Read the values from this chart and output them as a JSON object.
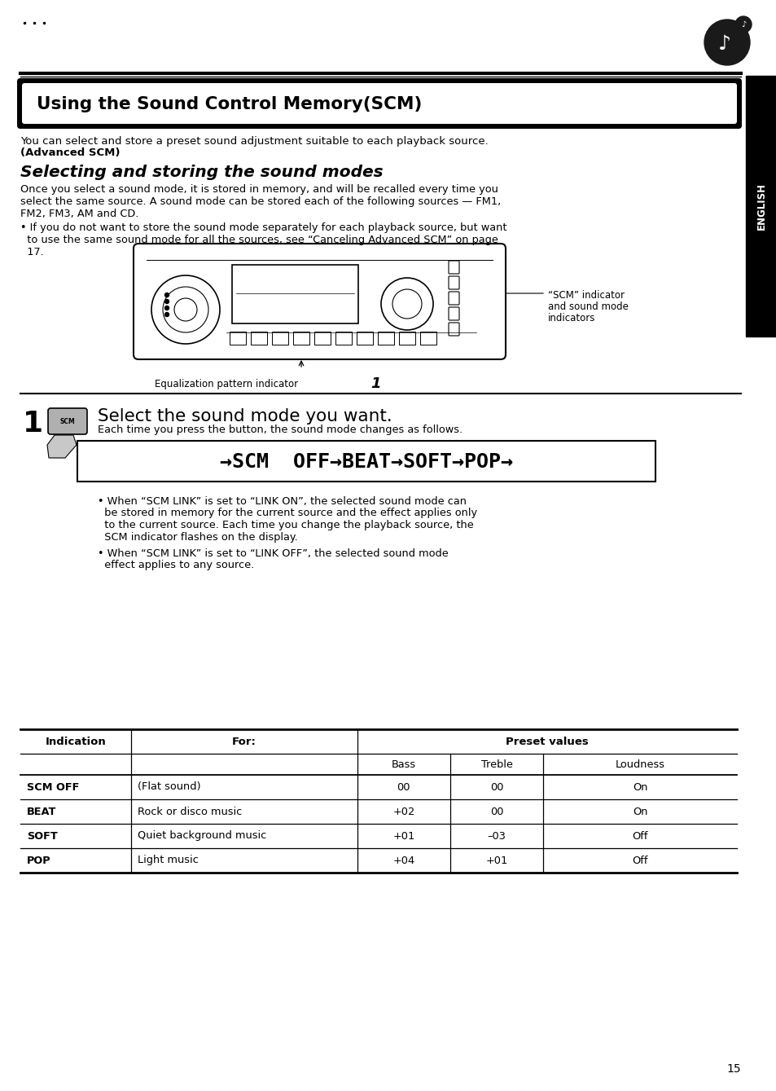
{
  "page_bg": "#ffffff",
  "title_box_text": "Using the Sound Control Memory(SCM)",
  "intro_line1": "You can select and store a preset sound adjustment suitable to each playback source.",
  "intro_line2": "(Advanced SCM)",
  "section_title": "Selecting and storing the sound modes",
  "body1_line1": "Once you select a sound mode, it is stored in memory, and will be recalled every time you",
  "body1_line2": "select the same source. A sound mode can be stored each of the following sources — FM1,",
  "body1_line3": "FM2, FM3, AM and CD.",
  "bullet1_line1": "• If you do not want to store the sound mode separately for each playback source, but want",
  "bullet1_line2": "  to use the same sound mode for all the sources, see “Canceling Advanced SCM” on page",
  "bullet1_line3": "  17.",
  "scm_label_line1": "“SCM” indicator",
  "scm_label_line2": "and sound mode",
  "scm_label_line3": "indicators",
  "eq_label": "Equalization pattern indicator",
  "eq_number": "1",
  "step_number": "1",
  "step_title": "Select the sound mode you want.",
  "step_body": "Each time you press the button, the sound mode changes as follows.",
  "scm_sequence": "→SCM  OFF→BEAT→SOFT→POP→",
  "bullet2_line1": "• When “SCM LINK” is set to “LINK ON”, the selected sound mode can",
  "bullet2_line2": "  be stored in memory for the current source and the effect applies only",
  "bullet2_line3": "  to the current source. Each time you change the playback source, the",
  "bullet2_line4": "  SCM indicator flashes on the display.",
  "bullet3_line1": "• When “SCM LINK” is set to “LINK OFF”, the selected sound mode",
  "bullet3_line2": "  effect applies to any source.",
  "table_data": [
    [
      "SCM OFF",
      "(Flat sound)",
      "00",
      "00",
      "On"
    ],
    [
      "BEAT",
      "Rock or disco music",
      "+02",
      "00",
      "On"
    ],
    [
      "SOFT",
      "Quiet background music",
      "+01",
      "–03",
      "Off"
    ],
    [
      "POP",
      "Light music",
      "+04",
      "+01",
      "Off"
    ]
  ],
  "page_number": "15"
}
